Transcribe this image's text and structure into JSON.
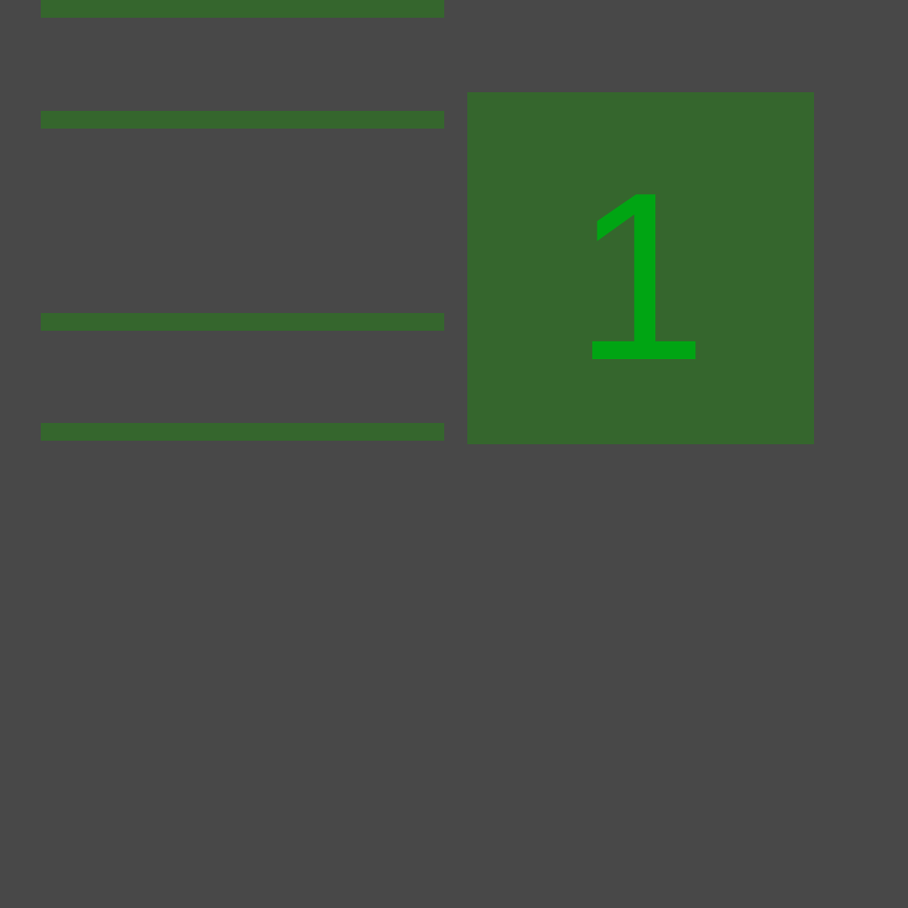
{
  "tile": {
    "number": "1"
  },
  "colors": {
    "background": "#484848",
    "bar": "#35662d",
    "tile": "#35662d",
    "number": "#00a513"
  }
}
